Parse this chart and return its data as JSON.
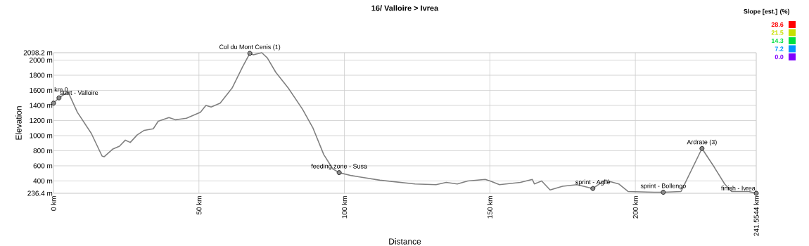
{
  "chart_data": {
    "type": "line",
    "title": "16/ Valloire > Ivrea",
    "xlabel": "Distance",
    "ylabel": "Elevation",
    "x": [
      0,
      1.9,
      5,
      8.2,
      13,
      16.7,
      17.4,
      20.3,
      22.7,
      24.7,
      26.4,
      28.8,
      31.2,
      34.3,
      36,
      39.7,
      42,
      45.7,
      50.5,
      52.4,
      54.2,
      57.3,
      61.4,
      65,
      67.5,
      68.7,
      71.6,
      73.5,
      76.4,
      80.7,
      85.6,
      89.2,
      92.9,
      96,
      98.2,
      102.5,
      112.2,
      124.3,
      131.5,
      135,
      138.8,
      142.4,
      148.4,
      150.1,
      153.3,
      160.5,
      164.6,
      165.3,
      167.8,
      170.7,
      175,
      179.9,
      185.4,
      189.5,
      194.3,
      197.5,
      206.5,
      209.6,
      215.7,
      222.9,
      227,
      230.7,
      233.1,
      239,
      241.5544
    ],
    "series": [
      {
        "color": "#808080",
        "values": [
          1430,
          1500,
          1580,
          1310,
          1030,
          730,
          720,
          820,
          860,
          940,
          910,
          1010,
          1070,
          1090,
          1190,
          1240,
          1210,
          1230,
          1310,
          1400,
          1380,
          1430,
          1630,
          1910,
          2090,
          2070,
          2098.2,
          2030,
          1840,
          1630,
          1350,
          1100,
          750,
          560,
          510,
          470,
          410,
          360,
          350,
          380,
          360,
          400,
          420,
          400,
          350,
          380,
          420,
          360,
          400,
          280,
          330,
          350,
          300,
          410,
          360,
          260,
          250,
          250,
          260,
          830,
          590,
          360,
          260,
          260,
          236.4
        ]
      }
    ],
    "xlim": [
      0,
      241.5544
    ],
    "ylim": [
      236.4,
      2098.2
    ],
    "xticks": [
      {
        "value": 0,
        "label": "0 km"
      },
      {
        "value": 50,
        "label": "50 km"
      },
      {
        "value": 100,
        "label": "100 km"
      },
      {
        "value": 150,
        "label": "150 km"
      },
      {
        "value": 200,
        "label": "200 km"
      },
      {
        "value": 241.5544,
        "label": "241.5544 km"
      }
    ],
    "yticks": [
      {
        "value": 236.4,
        "label": "236.4 m"
      },
      {
        "value": 400,
        "label": "400 m"
      },
      {
        "value": 600,
        "label": "600 m"
      },
      {
        "value": 800,
        "label": "800 m"
      },
      {
        "value": 1000,
        "label": "1000 m"
      },
      {
        "value": 1200,
        "label": "1200 m"
      },
      {
        "value": 1400,
        "label": "1400 m"
      },
      {
        "value": 1600,
        "label": "1600 m"
      },
      {
        "value": 1800,
        "label": "1800 m"
      },
      {
        "value": 2000,
        "label": "2000 m"
      },
      {
        "value": 2098.2,
        "label": "2098.2 m"
      }
    ],
    "grid": true,
    "marker": "none",
    "line_style": "solid",
    "annotations": [
      {
        "text": "km 0",
        "x": 0,
        "y": 1430
      },
      {
        "text": "start - Valloire",
        "x": 1.9,
        "y": 1500
      },
      {
        "text": "Col du Mont Cenis (1)",
        "x": 67.5,
        "y": 2090
      },
      {
        "text": "feeding zone - Susa",
        "x": 98.2,
        "y": 510
      },
      {
        "text": "sprint - Agliè",
        "x": 185.4,
        "y": 300
      },
      {
        "text": "sprint - Bollengo",
        "x": 209.6,
        "y": 250
      },
      {
        "text": "Ardrate (3)",
        "x": 222.9,
        "y": 830
      },
      {
        "text": "finish - Ivrea",
        "x": 241.5544,
        "y": 236.4
      }
    ],
    "clabel": "Slope [est.] (%)",
    "clim": [
      0,
      28.6
    ],
    "cticks": [
      {
        "value": 0,
        "label": "0.0"
      },
      7.2,
      14.3,
      21.5,
      28.6
    ],
    "colors": [
      "#7f00ff",
      "#0096ff",
      "#00e040",
      "#c8e000",
      "#ff0000"
    ]
  }
}
